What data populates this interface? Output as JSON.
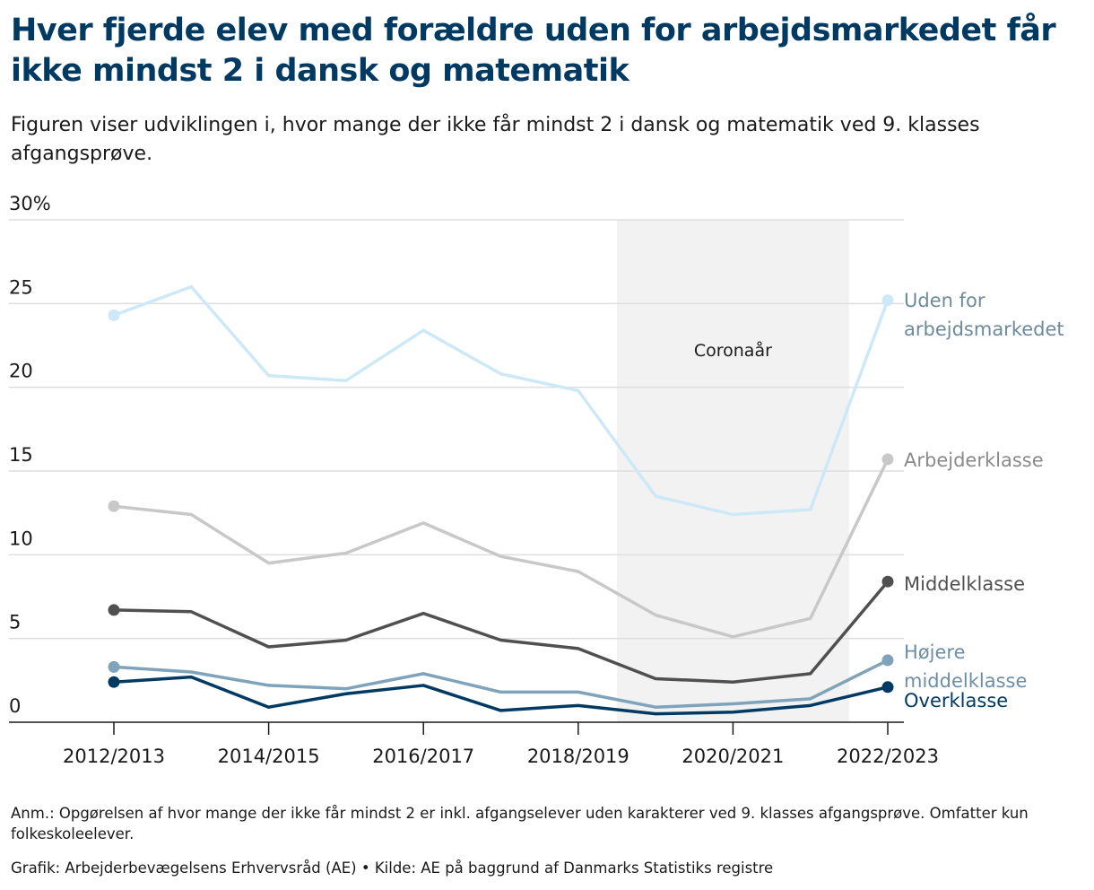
{
  "chart_data": {
    "type": "line",
    "title": "Hver fjerde elev med forældre uden for arbejdsmarkedet får ikke mindst 2 i dansk og matematik",
    "subtitle": "Figuren viser udviklingen i, hvor mange der ikke får mindst 2 i dansk og matematik ved 9. klasses afgangsprøve.",
    "note": "Anm.: Opgørelsen af hvor mange der ikke får mindst 2 er inkl. afgangselever uden karakterer ved 9. klasses afgangsprøve. Omfatter kun folkeskoleelever.",
    "source": "Grafik: Arbejderbevægelsens Erhvervsråd (AE) • Kilde: AE på baggrund af Danmarks Statistiks registre",
    "categories": [
      "2012/2013",
      null,
      "2014/2015",
      null,
      "2016/2017",
      null,
      "2018/2019",
      null,
      "2020/2021",
      null,
      "2022/2023"
    ],
    "shaded_span": {
      "label": "Coronaår",
      "from_index": 7,
      "to_index": 9,
      "color": "#f2f2f2"
    },
    "ylim": [
      0,
      30
    ],
    "yticks": [
      0,
      5,
      10,
      15,
      20,
      25,
      {
        "value": 30,
        "label": "30%"
      }
    ],
    "grid": true,
    "series": [
      {
        "name": "Uden for arbejdsmarkedet",
        "color": "#cde9f7",
        "label_color": "#6d8a9b",
        "values": [
          24.3,
          26.0,
          20.7,
          20.4,
          23.4,
          20.8,
          19.8,
          13.5,
          12.4,
          12.7,
          25.2
        ]
      },
      {
        "name": "Arbejderklasse",
        "color": "#c8c8c8",
        "label_color": "#8a8a8a",
        "values": [
          12.9,
          12.4,
          9.5,
          10.1,
          11.9,
          9.9,
          9.0,
          6.4,
          5.1,
          6.2,
          15.7
        ]
      },
      {
        "name": "Middelklasse",
        "color": "#505050",
        "label_color": "#505050",
        "values": [
          6.7,
          6.6,
          4.5,
          4.9,
          6.5,
          4.9,
          4.4,
          2.6,
          2.4,
          2.9,
          8.4
        ]
      },
      {
        "name": "Højere middelklasse",
        "color": "#7fa3ba",
        "label_color": "#6d8ea6",
        "values": [
          3.3,
          3.0,
          2.2,
          2.0,
          2.9,
          1.8,
          1.8,
          0.9,
          1.1,
          1.4,
          3.7
        ]
      },
      {
        "name": "Overklasse",
        "color": "#003a63",
        "label_color": "#003a63",
        "values": [
          2.4,
          2.7,
          0.9,
          1.7,
          2.2,
          0.7,
          1.0,
          0.5,
          0.6,
          1.0,
          2.1
        ]
      }
    ]
  }
}
